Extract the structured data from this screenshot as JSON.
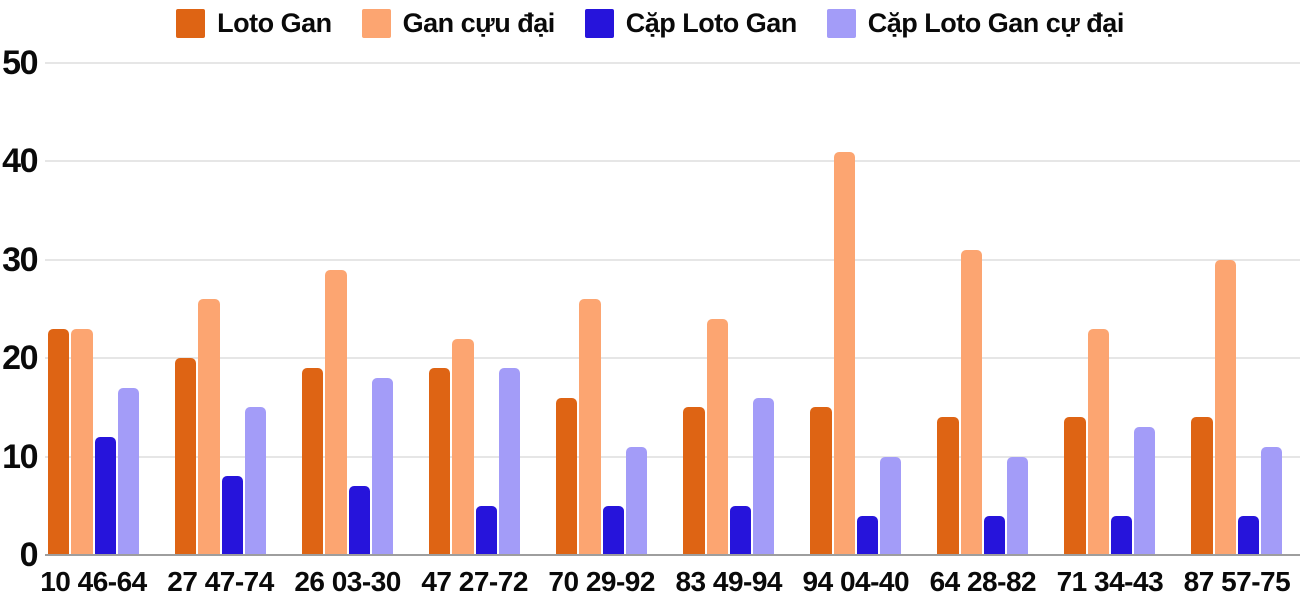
{
  "chart_data": {
    "type": "bar",
    "title": "",
    "xlabel": "",
    "ylabel": "",
    "categories": [
      "10 46-64",
      "27 47-74",
      "26 03-30",
      "47 27-72",
      "70 29-92",
      "83 49-94",
      "94 04-40",
      "64 28-82",
      "71 34-43",
      "87 57-75"
    ],
    "series": [
      {
        "name": "Loto Gan",
        "color": "#de6414",
        "values": [
          23,
          20,
          19,
          19,
          16,
          15,
          15,
          14,
          14,
          14
        ]
      },
      {
        "name": "Gan cựu đại",
        "color": "#fca571",
        "values": [
          23,
          26,
          29,
          22,
          26,
          24,
          41,
          31,
          23,
          30
        ]
      },
      {
        "name": "Cặp Loto Gan",
        "color": "#2614db",
        "values": [
          12,
          8,
          7,
          5,
          5,
          5,
          4,
          4,
          4,
          4
        ]
      },
      {
        "name": "Cặp Loto Gan cự đại",
        "color": "#a39cf8",
        "values": [
          17,
          15,
          18,
          19,
          11,
          16,
          10,
          10,
          13,
          11
        ]
      }
    ],
    "ylim": [
      0,
      50
    ],
    "yticks": [
      0,
      10,
      20,
      30,
      40,
      50
    ],
    "grid": true,
    "legend_position": "top"
  },
  "colors": {
    "background": "#ffffff",
    "gridline": "#e6e6e6",
    "baseline": "#9e9e9e",
    "text": "#0a0a0a"
  }
}
